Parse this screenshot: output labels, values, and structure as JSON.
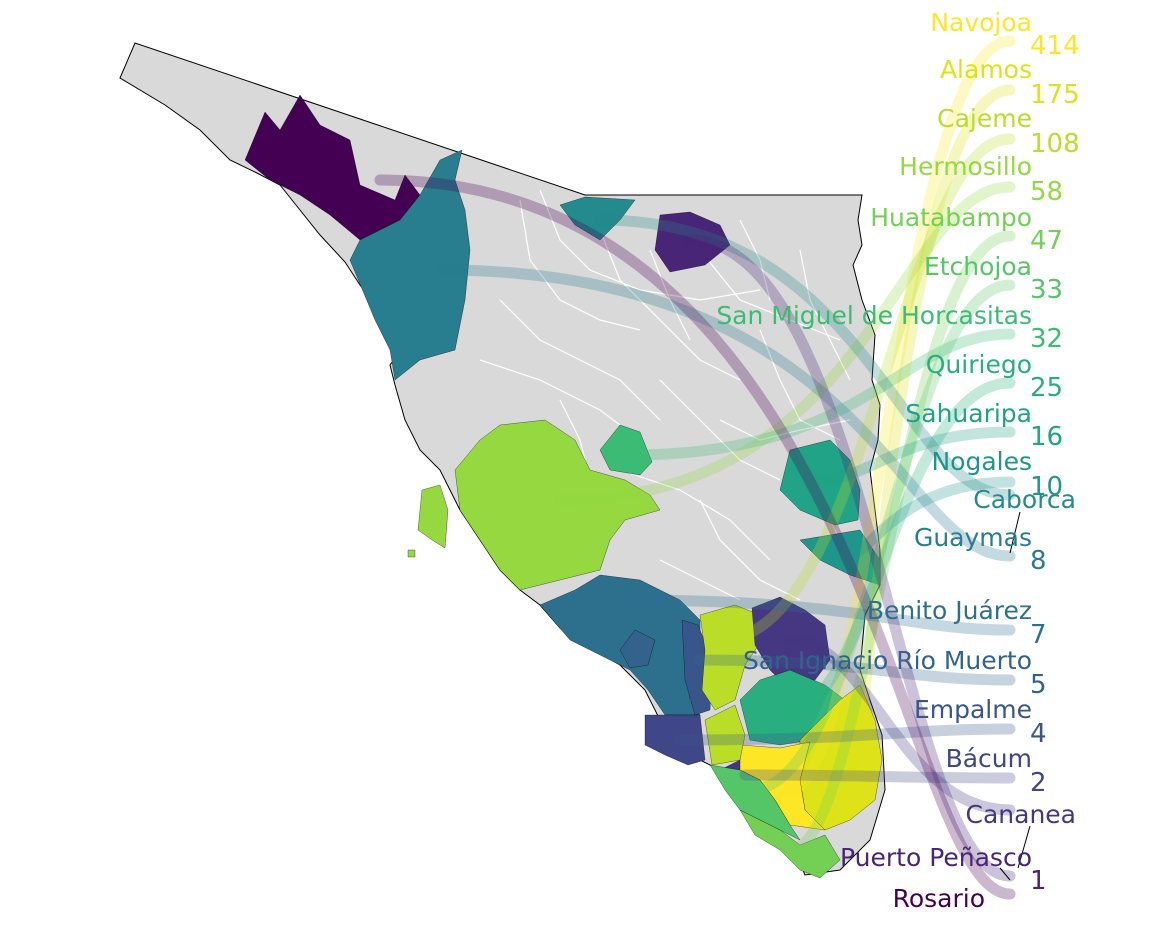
{
  "map": {
    "base_color": "#d9d9d9",
    "outline_color": "#000000",
    "inner_border_color": "#ffffff"
  },
  "entries": [
    {
      "name": "Navojoa",
      "value": "414",
      "color": "#fde725"
    },
    {
      "name": "Alamos",
      "value": "175",
      "color": "#dde318"
    },
    {
      "name": "Cajeme",
      "value": "108",
      "color": "#bade28"
    },
    {
      "name": "Hermosillo",
      "value": "58",
      "color": "#95d840"
    },
    {
      "name": "Huatabampo",
      "value": "47",
      "color": "#73d055"
    },
    {
      "name": "Etchojoa",
      "value": "33",
      "color": "#55c667"
    },
    {
      "name": "San Miguel de Horcasitas",
      "value": "32",
      "color": "#3cbb75"
    },
    {
      "name": "Quiriego",
      "value": "25",
      "color": "#29af7f"
    },
    {
      "name": "Sahuaripa",
      "value": "16",
      "color": "#20a386"
    },
    {
      "name": "Nogales",
      "value": "10",
      "color": "#1f968b"
    },
    {
      "name": "Caborca",
      "value": "",
      "color": "#238a8d"
    },
    {
      "name": "Guaymas",
      "value": "8",
      "color": "#287d8e"
    },
    {
      "name": "Benito Juárez",
      "value": "7",
      "color": "#2d708e"
    },
    {
      "name": "San Ignacio Río Muerto",
      "value": "5",
      "color": "#33638d"
    },
    {
      "name": "Empalme",
      "value": "4",
      "color": "#39568c"
    },
    {
      "name": "Bácum",
      "value": "2",
      "color": "#404788"
    },
    {
      "name": "Cananea",
      "value": "",
      "color": "#453781"
    },
    {
      "name": "Puerto Peñasco",
      "value": "1",
      "color": "#482576"
    },
    {
      "name": "Rosario",
      "value": "",
      "color": "#440154"
    }
  ]
}
